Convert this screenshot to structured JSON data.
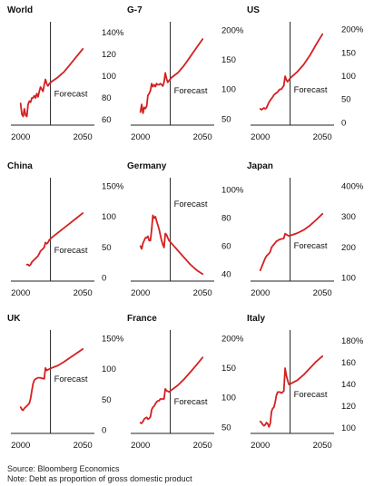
{
  "forecast_label": "Forecast",
  "colors": {
    "line": "#d42020",
    "axis": "#222222",
    "text": "#111111"
  },
  "footer": {
    "source": "Source: Bloomberg Economics",
    "note": "Note: Debt as proportion of gross domestic product"
  },
  "chart_data": [
    {
      "type": "line",
      "title": "World",
      "xlabel": "",
      "ylabel": "",
      "xlim": [
        1998,
        2055
      ],
      "ylim": [
        55,
        145
      ],
      "yticks": [
        60,
        80,
        100,
        120,
        140
      ],
      "ytick_labels": [
        "60",
        "80",
        "100",
        "120",
        "140%"
      ],
      "xticks": [
        2000,
        2050
      ],
      "forecast_x": 2024,
      "x": [
        2000,
        2001,
        2002,
        2003,
        2004,
        2005,
        2006,
        2007,
        2008,
        2009,
        2010,
        2011,
        2012,
        2013,
        2014,
        2015,
        2016,
        2017,
        2018,
        2019,
        2020,
        2021,
        2022,
        2023,
        2025,
        2030,
        2035,
        2040,
        2045,
        2050
      ],
      "y": [
        75,
        65,
        63,
        70,
        64,
        63,
        74,
        77,
        76,
        80,
        80,
        82,
        80,
        84,
        81,
        86,
        90,
        88,
        86,
        92,
        97,
        93,
        91,
        93,
        95,
        99,
        104,
        111,
        118,
        125
      ]
    },
    {
      "type": "line",
      "title": "G-7",
      "xlabel": "",
      "ylabel": "",
      "xlim": [
        1998,
        2055
      ],
      "ylim": [
        40,
        205
      ],
      "yticks": [
        50,
        100,
        150,
        200
      ],
      "ytick_labels": [
        "50",
        "100",
        "150",
        "200%"
      ],
      "xticks": [
        2000,
        2050
      ],
      "forecast_x": 2024,
      "x": [
        2000,
        2001,
        2002,
        2003,
        2004,
        2005,
        2006,
        2007,
        2008,
        2009,
        2010,
        2011,
        2012,
        2013,
        2014,
        2015,
        2016,
        2017,
        2018,
        2019,
        2020,
        2021,
        2022,
        2023,
        2025,
        2030,
        2035,
        2040,
        2045,
        2050
      ],
      "y": [
        62,
        75,
        60,
        70,
        68,
        72,
        90,
        93,
        98,
        110,
        105,
        108,
        105,
        110,
        108,
        108,
        110,
        108,
        106,
        112,
        128,
        118,
        112,
        115,
        120,
        128,
        140,
        155,
        170,
        185
      ]
    },
    {
      "type": "line",
      "title": "US",
      "xlabel": "",
      "ylabel": "",
      "xlim": [
        1998,
        2055
      ],
      "ylim": [
        -5,
        205
      ],
      "yticks": [
        0,
        50,
        100,
        150,
        200
      ],
      "ytick_labels": [
        "0",
        "50",
        "100",
        "150",
        "200%"
      ],
      "xticks": [
        2000,
        2050
      ],
      "forecast_x": 2024,
      "x": [
        2000,
        2001,
        2002,
        2003,
        2004,
        2005,
        2006,
        2007,
        2008,
        2009,
        2010,
        2011,
        2012,
        2013,
        2014,
        2015,
        2016,
        2017,
        2018,
        2019,
        2020,
        2021,
        2022,
        2023,
        2025,
        2030,
        2035,
        2040,
        2045,
        2050
      ],
      "y": [
        30,
        28,
        30,
        32,
        30,
        32,
        38,
        44,
        48,
        52,
        55,
        60,
        62,
        64,
        66,
        70,
        72,
        72,
        76,
        80,
        100,
        92,
        88,
        92,
        98,
        110,
        125,
        145,
        168,
        190
      ]
    },
    {
      "type": "line",
      "title": "China",
      "xlabel": "",
      "ylabel": "",
      "xlim": [
        1998,
        2055
      ],
      "ylim": [
        -5,
        155
      ],
      "yticks": [
        0,
        50,
        100,
        150
      ],
      "ytick_labels": [
        "0",
        "50",
        "100",
        "150%"
      ],
      "xticks": [
        2000,
        2050
      ],
      "forecast_x": 2024,
      "x": [
        2005,
        2006,
        2007,
        2008,
        2009,
        2010,
        2011,
        2012,
        2013,
        2014,
        2015,
        2016,
        2017,
        2018,
        2019,
        2020,
        2021,
        2022,
        2023,
        2025,
        2030,
        2035,
        2040,
        2045,
        2050
      ],
      "y": [
        22,
        22,
        20,
        22,
        26,
        28,
        30,
        32,
        34,
        36,
        40,
        44,
        46,
        48,
        50,
        58,
        56,
        58,
        62,
        66,
        74,
        82,
        90,
        98,
        106
      ]
    },
    {
      "type": "line",
      "title": "Germany",
      "xlabel": "",
      "ylabel": "",
      "xlim": [
        1998,
        2055
      ],
      "ylim": [
        35,
        105
      ],
      "yticks": [
        40,
        60,
        80,
        100
      ],
      "ytick_labels": [
        "40",
        "60",
        "80",
        "100%"
      ],
      "xticks": [
        2000,
        2050
      ],
      "forecast_x": 2024,
      "x": [
        2000,
        2001,
        2002,
        2003,
        2004,
        2005,
        2006,
        2007,
        2008,
        2009,
        2010,
        2011,
        2012,
        2013,
        2014,
        2015,
        2016,
        2017,
        2018,
        2019,
        2020,
        2021,
        2022,
        2023,
        2025,
        2030,
        2035,
        2040,
        2045,
        2050
      ],
      "y": [
        60,
        58,
        62,
        64,
        66,
        66,
        67,
        64,
        64,
        72,
        82,
        80,
        81,
        78,
        75,
        72,
        68,
        64,
        61,
        59,
        69,
        68,
        66,
        64,
        62,
        57,
        52,
        47,
        43,
        40
      ]
    },
    {
      "type": "line",
      "title": "Japan",
      "xlabel": "",
      "ylabel": "",
      "xlim": [
        1998,
        2055
      ],
      "ylim": [
        90,
        410
      ],
      "yticks": [
        100,
        200,
        300,
        400
      ],
      "ytick_labels": [
        "100",
        "200",
        "300",
        "400%"
      ],
      "xticks": [
        2000,
        2050
      ],
      "forecast_x": 2024,
      "x": [
        2000,
        2001,
        2002,
        2003,
        2004,
        2005,
        2006,
        2007,
        2008,
        2009,
        2010,
        2011,
        2012,
        2013,
        2014,
        2015,
        2016,
        2017,
        2018,
        2019,
        2020,
        2021,
        2022,
        2023,
        2025,
        2030,
        2035,
        2040,
        2045,
        2050
      ],
      "y": [
        125,
        135,
        145,
        155,
        165,
        172,
        176,
        180,
        186,
        200,
        205,
        210,
        215,
        220,
        222,
        225,
        226,
        228,
        228,
        230,
        245,
        242,
        240,
        238,
        240,
        247,
        257,
        272,
        290,
        310
      ]
    },
    {
      "type": "line",
      "title": "UK",
      "xlabel": "",
      "ylabel": "",
      "xlim": [
        1998,
        2055
      ],
      "ylim": [
        -5,
        155
      ],
      "yticks": [
        0,
        50,
        100,
        150
      ],
      "ytick_labels": [
        "0",
        "50",
        "100",
        "150%"
      ],
      "xticks": [
        2000,
        2050
      ],
      "forecast_x": 2024,
      "x": [
        2000,
        2001,
        2002,
        2003,
        2004,
        2005,
        2006,
        2007,
        2008,
        2009,
        2010,
        2011,
        2012,
        2013,
        2014,
        2015,
        2016,
        2017,
        2018,
        2019,
        2020,
        2021,
        2022,
        2023,
        2025,
        2030,
        2035,
        2040,
        2045,
        2050
      ],
      "y": [
        38,
        34,
        33,
        36,
        38,
        40,
        42,
        44,
        52,
        65,
        76,
        82,
        84,
        85,
        86,
        86,
        86,
        85,
        85,
        84,
        102,
        98,
        99,
        100,
        102,
        106,
        112,
        119,
        126,
        133
      ]
    },
    {
      "type": "line",
      "title": "France",
      "xlabel": "",
      "ylabel": "",
      "xlim": [
        1998,
        2055
      ],
      "ylim": [
        40,
        205
      ],
      "yticks": [
        50,
        100,
        150,
        200
      ],
      "ytick_labels": [
        "50",
        "100",
        "150",
        "200%"
      ],
      "xticks": [
        2000,
        2050
      ],
      "forecast_x": 2024,
      "x": [
        2000,
        2001,
        2002,
        2003,
        2004,
        2005,
        2006,
        2007,
        2008,
        2009,
        2010,
        2011,
        2012,
        2013,
        2014,
        2015,
        2016,
        2017,
        2018,
        2019,
        2020,
        2021,
        2022,
        2023,
        2025,
        2030,
        2035,
        2040,
        2045,
        2050
      ],
      "y": [
        58,
        57,
        60,
        64,
        66,
        67,
        64,
        65,
        68,
        80,
        84,
        86,
        90,
        93,
        95,
        95,
        98,
        98,
        98,
        98,
        115,
        112,
        111,
        110,
        113,
        121,
        131,
        143,
        155,
        168
      ]
    },
    {
      "type": "line",
      "title": "Italy",
      "xlabel": "",
      "ylabel": "",
      "xlim": [
        1998,
        2055
      ],
      "ylim": [
        95,
        185
      ],
      "yticks": [
        100,
        120,
        140,
        160,
        180
      ],
      "ytick_labels": [
        "100",
        "120",
        "140",
        "160",
        "180%"
      ],
      "xticks": [
        2000,
        2050
      ],
      "forecast_x": 2024,
      "x": [
        2000,
        2001,
        2002,
        2003,
        2004,
        2005,
        2006,
        2007,
        2008,
        2009,
        2010,
        2011,
        2012,
        2013,
        2014,
        2015,
        2016,
        2017,
        2018,
        2019,
        2020,
        2021,
        2022,
        2023,
        2025,
        2030,
        2035,
        2040,
        2045,
        2050
      ],
      "y": [
        106,
        105,
        103,
        102,
        103,
        105,
        104,
        101,
        104,
        115,
        118,
        119,
        124,
        130,
        133,
        133,
        133,
        132,
        133,
        134,
        155,
        148,
        144,
        140,
        141,
        144,
        149,
        155,
        161,
        166
      ]
    }
  ]
}
